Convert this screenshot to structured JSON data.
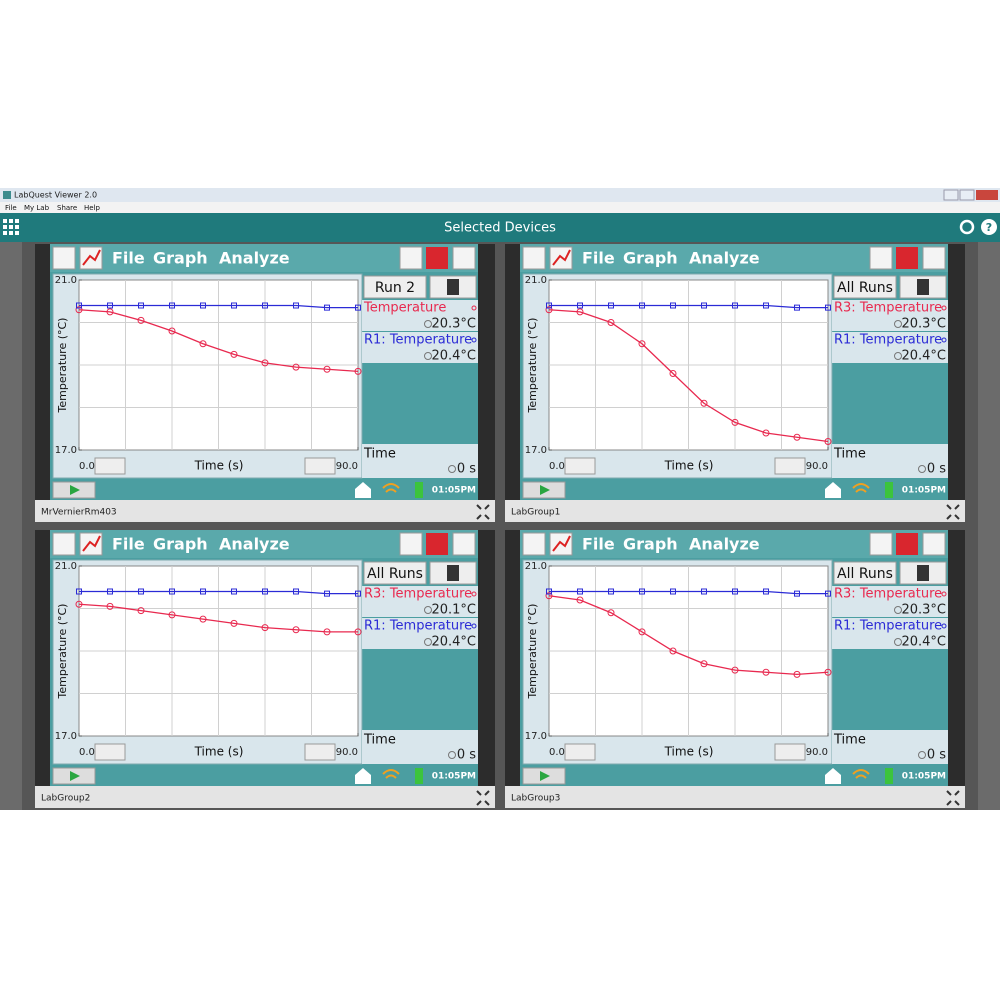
{
  "window": {
    "title": "LabQuest Viewer 2.0",
    "menu": [
      "File",
      "My Lab",
      "Share",
      "Help"
    ]
  },
  "header": {
    "title": "Selected Devices"
  },
  "devices": [
    {
      "name": "MrVernierRm403",
      "menu": [
        "File",
        "Graph",
        "Analyze"
      ],
      "run_button": "Run 2",
      "readouts": [
        "20.3°C",
        "20.4°C"
      ],
      "time_label": "Time",
      "time_value": "0 s",
      "clock": "01:05PM",
      "chart": {
        "type": "line",
        "y_label": "Temperature (°C)",
        "x_label": "Time (s)",
        "x": [
          0,
          10,
          20,
          30,
          40,
          50,
          60,
          70,
          80,
          90
        ],
        "xlim": [
          0,
          90
        ],
        "xticks": [
          {
            "value": 0,
            "label": "0.0"
          },
          {
            "value": 90,
            "label": "90.0"
          }
        ],
        "ylim": [
          17,
          21
        ],
        "yticks": [
          {
            "value": 17,
            "label": "17.0"
          },
          {
            "value": 21,
            "label": "21.0"
          }
        ],
        "grid": true,
        "series": [
          {
            "name": "Temperature",
            "color": "#e8294f",
            "marker": "circle",
            "values": [
              20.3,
              20.25,
              20.05,
              19.8,
              19.5,
              19.25,
              19.05,
              18.95,
              18.9,
              18.85
            ]
          },
          {
            "name": "R1: Temperature",
            "color": "#2b2bd6",
            "marker": "square",
            "values": [
              20.4,
              20.4,
              20.4,
              20.4,
              20.4,
              20.4,
              20.4,
              20.4,
              20.35,
              20.35
            ]
          }
        ]
      }
    },
    {
      "name": "LabGroup1",
      "menu": [
        "File",
        "Graph",
        "Analyze"
      ],
      "run_button": "All Runs",
      "readouts": [
        "20.3°C",
        "20.4°C"
      ],
      "time_label": "Time",
      "time_value": "0 s",
      "clock": "01:05PM",
      "chart": {
        "type": "line",
        "y_label": "Temperature (°C)",
        "x_label": "Time (s)",
        "x": [
          0,
          10,
          20,
          30,
          40,
          50,
          60,
          70,
          80,
          90
        ],
        "xlim": [
          0,
          90
        ],
        "xticks": [
          {
            "value": 0,
            "label": "0.0"
          },
          {
            "value": 90,
            "label": "90.0"
          }
        ],
        "ylim": [
          17,
          21
        ],
        "yticks": [
          {
            "value": 17,
            "label": "17.0"
          },
          {
            "value": 21,
            "label": "21.0"
          }
        ],
        "grid": true,
        "series": [
          {
            "name": "R3: Temperature",
            "color": "#e8294f",
            "marker": "circle",
            "values": [
              20.3,
              20.25,
              20.0,
              19.5,
              18.8,
              18.1,
              17.65,
              17.4,
              17.3,
              17.2
            ]
          },
          {
            "name": "R1: Temperature",
            "color": "#2b2bd6",
            "marker": "square",
            "values": [
              20.4,
              20.4,
              20.4,
              20.4,
              20.4,
              20.4,
              20.4,
              20.4,
              20.35,
              20.35
            ]
          }
        ]
      }
    },
    {
      "name": "LabGroup2",
      "menu": [
        "File",
        "Graph",
        "Analyze"
      ],
      "run_button": "All Runs",
      "readouts": [
        "20.1°C",
        "20.4°C"
      ],
      "time_label": "Time",
      "time_value": "0 s",
      "clock": "01:05PM",
      "chart": {
        "type": "line",
        "y_label": "Temperature (°C)",
        "x_label": "Time (s)",
        "x": [
          0,
          10,
          20,
          30,
          40,
          50,
          60,
          70,
          80,
          90
        ],
        "xlim": [
          0,
          90
        ],
        "xticks": [
          {
            "value": 0,
            "label": "0.0"
          },
          {
            "value": 90,
            "label": "90.0"
          }
        ],
        "ylim": [
          17,
          21
        ],
        "yticks": [
          {
            "value": 17,
            "label": "17.0"
          },
          {
            "value": 21,
            "label": "21.0"
          }
        ],
        "grid": true,
        "series": [
          {
            "name": "R3: Temperature",
            "color": "#e8294f",
            "marker": "circle",
            "values": [
              20.1,
              20.05,
              19.95,
              19.85,
              19.75,
              19.65,
              19.55,
              19.5,
              19.45,
              19.45
            ]
          },
          {
            "name": "R1: Temperature",
            "color": "#2b2bd6",
            "marker": "square",
            "values": [
              20.4,
              20.4,
              20.4,
              20.4,
              20.4,
              20.4,
              20.4,
              20.4,
              20.35,
              20.35
            ]
          }
        ]
      }
    },
    {
      "name": "LabGroup3",
      "menu": [
        "File",
        "Graph",
        "Analyze"
      ],
      "run_button": "All Runs",
      "readouts": [
        "20.3°C",
        "20.4°C"
      ],
      "time_label": "Time",
      "time_value": "0 s",
      "clock": "01:05PM",
      "chart": {
        "type": "line",
        "y_label": "Temperature (°C)",
        "x_label": "Time (s)",
        "x": [
          0,
          10,
          20,
          30,
          40,
          50,
          60,
          70,
          80,
          90
        ],
        "xlim": [
          0,
          90
        ],
        "xticks": [
          {
            "value": 0,
            "label": "0.0"
          },
          {
            "value": 90,
            "label": "90.0"
          }
        ],
        "ylim": [
          17,
          21
        ],
        "yticks": [
          {
            "value": 17,
            "label": "17.0"
          },
          {
            "value": 21,
            "label": "21.0"
          }
        ],
        "grid": true,
        "series": [
          {
            "name": "R3: Temperature",
            "color": "#e8294f",
            "marker": "circle",
            "values": [
              20.3,
              20.2,
              19.9,
              19.45,
              19.0,
              18.7,
              18.55,
              18.5,
              18.45,
              18.5
            ]
          },
          {
            "name": "R1: Temperature",
            "color": "#2b2bd6",
            "marker": "square",
            "values": [
              20.4,
              20.4,
              20.4,
              20.4,
              20.4,
              20.4,
              20.4,
              20.4,
              20.35,
              20.35
            ]
          }
        ]
      }
    }
  ]
}
